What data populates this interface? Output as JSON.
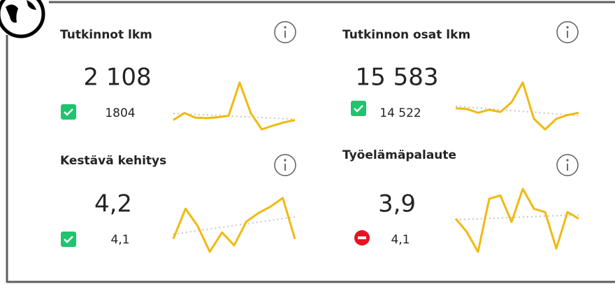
{
  "cards": [
    {
      "title": "Tutkinnot lkm",
      "value": "2 108",
      "target": "1804",
      "status": "ok",
      "sparkline": [
        1700,
        1850,
        1750,
        1740,
        1760,
        1790,
        2500,
        1850,
        1500,
        1580,
        1650,
        1700
      ]
    },
    {
      "title": "Tutkinnon osat lkm",
      "value": "15 583",
      "target": "14 522",
      "status": "ok",
      "sparkline": [
        15000,
        14950,
        14700,
        14900,
        14750,
        15400,
        16700,
        14300,
        13600,
        14300,
        14550,
        14700
      ]
    },
    {
      "title": "Kestävä kehitys",
      "value": "4,2",
      "target": "4,1",
      "status": "ok",
      "sparkline": [
        3.6,
        4.3,
        3.9,
        3.3,
        3.75,
        3.45,
        4.0,
        4.2,
        4.35,
        4.55,
        3.6
      ]
    },
    {
      "title": "Työelämäpalaute",
      "value": "3,9",
      "target": "4,1",
      "status": "bad",
      "sparkline": [
        3.8,
        3.6,
        3.3,
        4.1,
        4.15,
        3.75,
        4.25,
        3.95,
        3.9,
        3.35,
        3.9,
        3.8
      ]
    }
  ]
}
